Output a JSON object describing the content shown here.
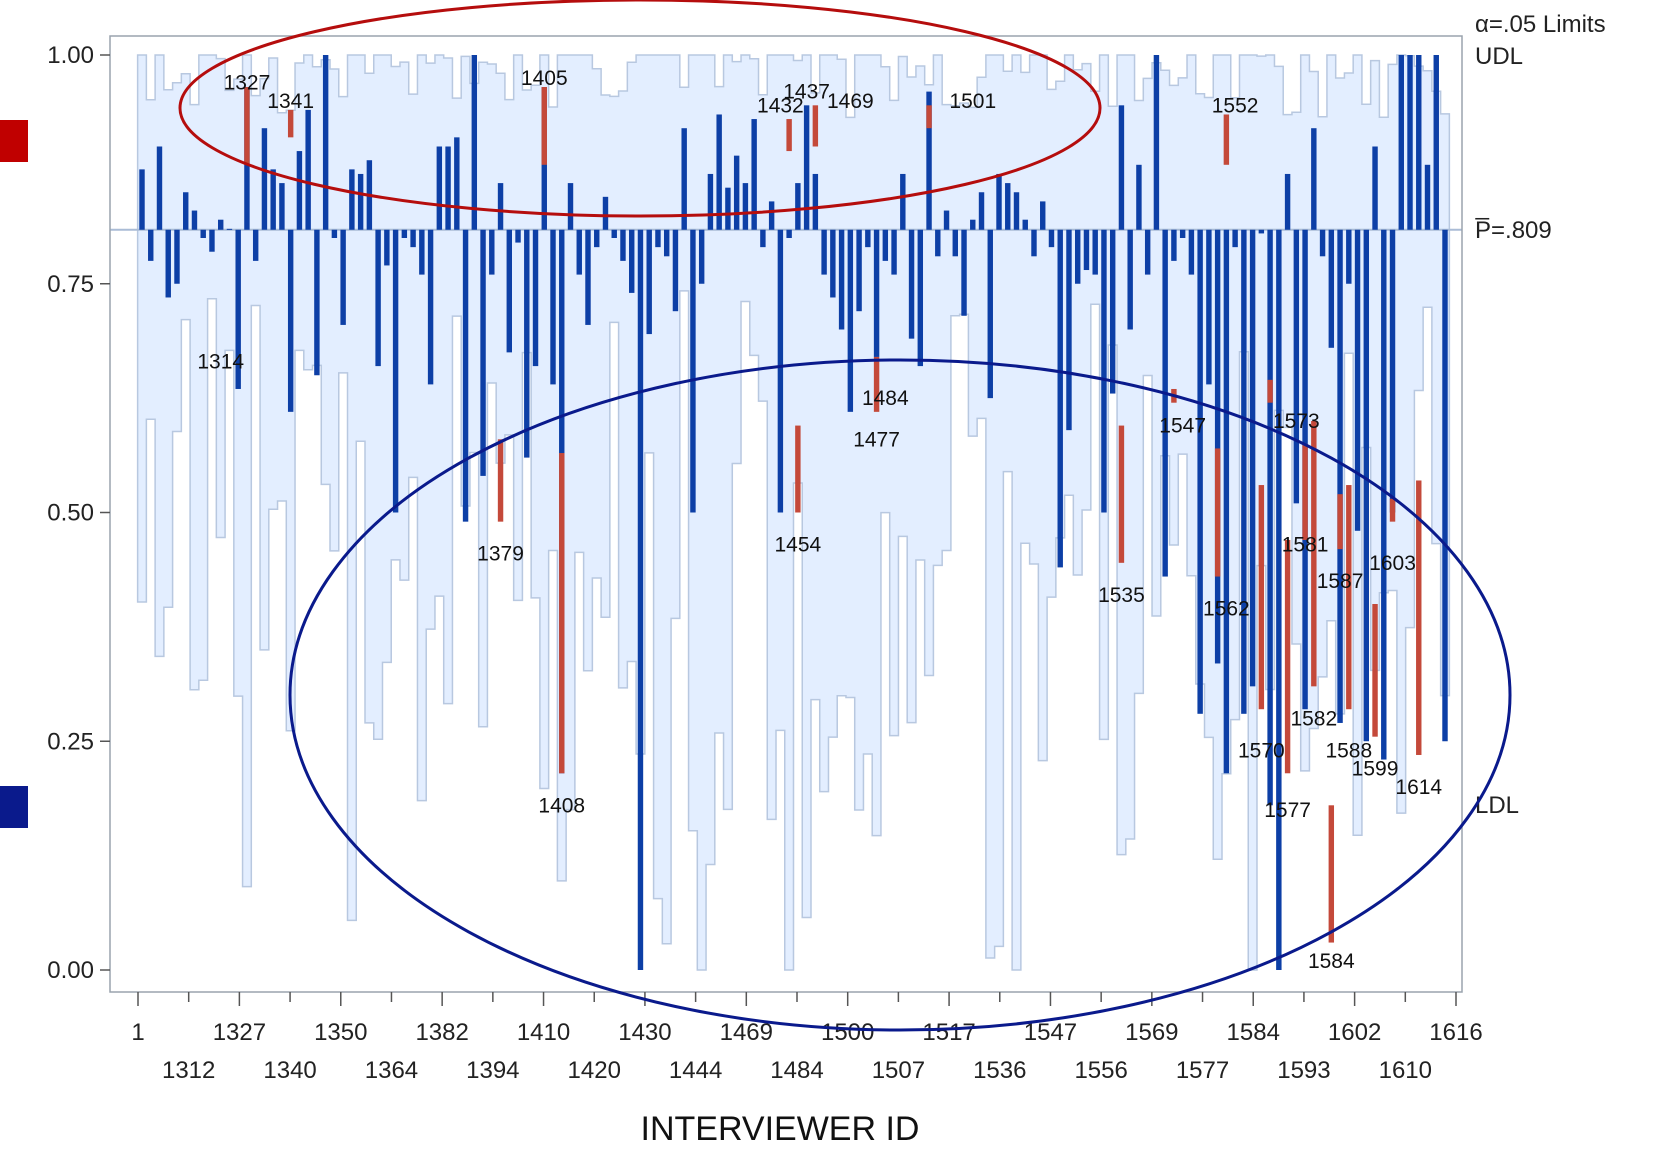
{
  "chart_data": {
    "type": "bar",
    "xlabel": "INTERVIEWER ID",
    "ylim": [
      0,
      1
    ],
    "y_ticks": [
      "0.00",
      "0.25",
      "0.50",
      "0.75",
      "1.00"
    ],
    "x_tick_labels_row1": [
      "1",
      "1327",
      "1350",
      "1382",
      "1410",
      "1430",
      "1469",
      "1500",
      "1517",
      "1547",
      "1569",
      "1584",
      "1602",
      "1616"
    ],
    "x_tick_labels_row2": [
      "1312",
      "1340",
      "1364",
      "1394",
      "1420",
      "1444",
      "1484",
      "1507",
      "1536",
      "1556",
      "1577",
      "1593",
      "1610"
    ],
    "center_line": {
      "value": 0.809,
      "label": "P̅=.809"
    },
    "limits_label": "α=.05 Limits",
    "udl_label": "UDL",
    "ldl_label": "LDL",
    "colors": {
      "bar": "#0d3fa6",
      "exceed": "#c4493a",
      "band": "#e3eeff",
      "band_edge": "#b8c8e0",
      "center": "#aabcd6",
      "upper_ellipse": "#b50d0d",
      "lower_ellipse": "#0a1a8c",
      "legend_red": "#c00000",
      "legend_blue": "#0a1a8c"
    },
    "values": [
      0.875,
      0.775,
      0.9,
      0.735,
      0.75,
      0.85,
      0.83,
      0.8,
      0.785,
      0.82,
      0.81,
      0.635,
      0.965,
      0.775,
      0.92,
      0.875,
      0.86,
      0.61,
      0.895,
      0.94,
      0.65,
      1.0,
      0.8,
      0.705,
      0.875,
      0.87,
      0.885,
      0.66,
      0.77,
      0.5,
      0.8,
      0.79,
      0.76,
      0.64,
      0.9,
      0.9,
      0.91,
      0.49,
      1.0,
      0.54,
      0.76,
      0.86,
      0.675,
      0.795,
      0.56,
      0.66,
      0.965,
      0.64,
      0.215,
      0.86,
      0.76,
      0.705,
      0.79,
      0.845,
      0.8,
      0.775,
      0.74,
      0.0,
      0.695,
      0.79,
      0.78,
      0.72,
      0.92,
      0.5,
      0.75,
      0.87,
      0.935,
      0.855,
      0.89,
      0.86,
      0.93,
      0.79,
      0.84,
      0.5,
      0.8,
      0.86,
      0.945,
      0.87,
      0.76,
      0.735,
      0.7,
      0.61,
      0.72,
      0.79,
      0.67,
      0.775,
      0.76,
      0.87,
      0.69,
      0.66,
      0.96,
      0.78,
      0.83,
      0.78,
      0.715,
      0.82,
      0.85,
      0.625,
      0.87,
      0.86,
      0.85,
      0.82,
      0.78,
      0.84,
      0.79,
      0.44,
      0.59,
      0.75,
      0.765,
      0.76,
      0.5,
      0.63,
      0.945,
      0.7,
      0.88,
      0.76,
      1.0,
      0.43,
      0.775,
      0.8,
      0.76,
      0.28,
      0.64,
      0.335,
      0.215,
      0.79,
      0.28,
      0.31,
      0.805,
      0.18,
      0.0,
      0.87,
      0.51,
      0.285,
      0.92,
      0.78,
      0.68,
      0.27,
      0.75,
      0.48,
      0.25,
      0.9,
      0.23,
      0.5,
      1.0,
      1.0,
      1.0,
      0.88,
      1.0,
      0.25
    ],
    "red_segments": [
      [
        12,
        0.88,
        0.965
      ],
      [
        17,
        0.91,
        0.94
      ],
      [
        46,
        0.88,
        0.965
      ],
      [
        74,
        0.895,
        0.93
      ],
      [
        77,
        0.9,
        0.945
      ],
      [
        90,
        0.92,
        0.945
      ],
      [
        124,
        0.88,
        0.935
      ],
      [
        41,
        0.49,
        0.58
      ],
      [
        48,
        0.215,
        0.565
      ],
      [
        75,
        0.5,
        0.595
      ],
      [
        84,
        0.61,
        0.67
      ],
      [
        112,
        0.445,
        0.595
      ],
      [
        118,
        0.62,
        0.635
      ],
      [
        123,
        0.43,
        0.57
      ],
      [
        128,
        0.285,
        0.53
      ],
      [
        129,
        0.62,
        0.645
      ],
      [
        131,
        0.215,
        0.47
      ],
      [
        133,
        0.47,
        0.575
      ],
      [
        134,
        0.31,
        0.6
      ],
      [
        136,
        0.03,
        0.18
      ],
      [
        137,
        0.46,
        0.52
      ],
      [
        138,
        0.285,
        0.53
      ],
      [
        141,
        0.255,
        0.4
      ],
      [
        143,
        0.49,
        0.515
      ],
      [
        146,
        0.235,
        0.535
      ]
    ],
    "annotations": [
      {
        "label": "1327",
        "bar": 12,
        "y": 0.97
      },
      {
        "label": "1341",
        "bar": 17,
        "y": 0.95
      },
      {
        "label": "1405",
        "bar": 46,
        "y": 0.975
      },
      {
        "label": "1437",
        "bar": 76,
        "y": 0.96
      },
      {
        "label": "1432",
        "bar": 73,
        "y": 0.945
      },
      {
        "label": "1469",
        "bar": 81,
        "y": 0.95
      },
      {
        "label": "1501",
        "bar": 95,
        "y": 0.95
      },
      {
        "label": "1552",
        "bar": 125,
        "y": 0.945
      },
      {
        "label": "1314",
        "bar": 9,
        "y": 0.665
      },
      {
        "label": "1484",
        "bar": 85,
        "y": 0.625
      },
      {
        "label": "1477",
        "bar": 84,
        "y": 0.58
      },
      {
        "label": "1547",
        "bar": 119,
        "y": 0.595
      },
      {
        "label": "1573",
        "bar": 132,
        "y": 0.6
      },
      {
        "label": "1379",
        "bar": 41,
        "y": 0.455
      },
      {
        "label": "1454",
        "bar": 75,
        "y": 0.465
      },
      {
        "label": "1535",
        "bar": 112,
        "y": 0.41
      },
      {
        "label": "1562",
        "bar": 124,
        "y": 0.395
      },
      {
        "label": "1581",
        "bar": 133,
        "y": 0.465
      },
      {
        "label": "1587",
        "bar": 137,
        "y": 0.425
      },
      {
        "label": "1603",
        "bar": 143,
        "y": 0.445
      },
      {
        "label": "1582",
        "bar": 134,
        "y": 0.275
      },
      {
        "label": "1570",
        "bar": 128,
        "y": 0.24
      },
      {
        "label": "1588",
        "bar": 138,
        "y": 0.24
      },
      {
        "label": "1599",
        "bar": 141,
        "y": 0.22
      },
      {
        "label": "1614",
        "bar": 146,
        "y": 0.2
      },
      {
        "label": "1408",
        "bar": 48,
        "y": 0.18
      },
      {
        "label": "1577",
        "bar": 131,
        "y": 0.175
      },
      {
        "label": "1584",
        "bar": 136,
        "y": 0.01
      }
    ]
  }
}
